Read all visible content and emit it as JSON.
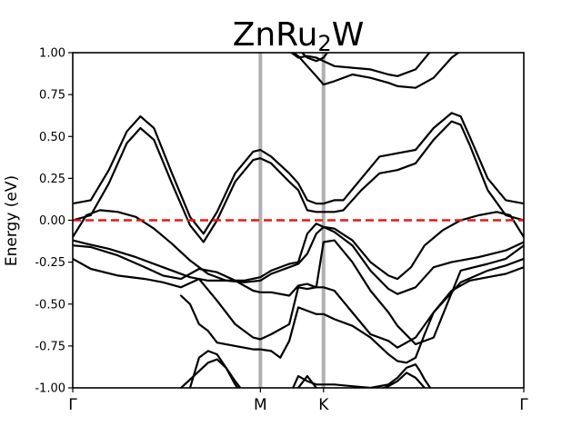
{
  "chart_data": {
    "type": "line",
    "title_main": "ZnRu",
    "title_sub": "2",
    "title_tail": "W",
    "xlabel": "",
    "ylabel": "Energy (eV)",
    "ylim": [
      -1.0,
      1.0
    ],
    "yticks": [
      "1.00",
      "0.75",
      "0.50",
      "0.25",
      "0.00",
      "-0.25",
      "-0.50",
      "-0.75",
      "-1.00"
    ],
    "ytick_values": [
      1.0,
      0.75,
      0.5,
      0.25,
      0.0,
      -0.25,
      -0.5,
      -0.75,
      -1.0
    ],
    "xlim": [
      0,
      1.0
    ],
    "kpoints": [
      {
        "label": "Γ",
        "x": 0.0
      },
      {
        "label": "M",
        "x": 0.416
      },
      {
        "label": "K",
        "x": 0.556
      },
      {
        "label": "Γ",
        "x": 1.0
      }
    ],
    "vlines": [
      0.416,
      0.556
    ],
    "fermi_level": 0.0,
    "colors": {
      "bands": "#000000",
      "fermi": "#e31a1c",
      "vline": "#b0b0b0"
    },
    "series": [
      {
        "x": [
          0.0,
          0.04,
          0.08,
          0.12,
          0.15,
          0.18,
          0.22,
          0.26,
          0.29,
          0.32,
          0.36,
          0.4,
          0.416,
          0.44,
          0.48,
          0.5,
          0.52,
          0.54,
          0.556,
          0.58,
          0.6,
          0.64,
          0.68,
          0.72,
          0.76,
          0.8,
          0.84,
          0.86,
          0.88,
          0.92,
          0.96,
          1.0
        ],
        "values": [
          0.1,
          0.12,
          0.3,
          0.53,
          0.62,
          0.55,
          0.28,
          0.02,
          -0.08,
          0.05,
          0.28,
          0.41,
          0.42,
          0.38,
          0.28,
          0.22,
          0.12,
          0.1,
          0.1,
          0.12,
          0.12,
          0.25,
          0.38,
          0.4,
          0.42,
          0.55,
          0.64,
          0.62,
          0.5,
          0.25,
          0.12,
          0.1
        ]
      },
      {
        "x": [
          0.0,
          0.04,
          0.08,
          0.12,
          0.15,
          0.18,
          0.22,
          0.26,
          0.29,
          0.32,
          0.36,
          0.4,
          0.416,
          0.44,
          0.48,
          0.5,
          0.52,
          0.54,
          0.556,
          0.58,
          0.6,
          0.64,
          0.68,
          0.72,
          0.76,
          0.8,
          0.84,
          0.86,
          0.88,
          0.92,
          0.96,
          1.0
        ],
        "values": [
          0.0,
          0.03,
          0.22,
          0.46,
          0.55,
          0.48,
          0.22,
          -0.03,
          -0.13,
          0.0,
          0.23,
          0.36,
          0.37,
          0.34,
          0.23,
          0.18,
          0.06,
          0.05,
          0.05,
          0.05,
          0.06,
          0.18,
          0.28,
          0.3,
          0.34,
          0.48,
          0.59,
          0.57,
          0.45,
          0.18,
          0.03,
          0.0
        ]
      },
      {
        "x": [
          0.0,
          0.03,
          0.06,
          0.1,
          0.14,
          0.18,
          0.22,
          0.26,
          0.3,
          0.34,
          0.38,
          0.416,
          0.44,
          0.48,
          0.5,
          0.52,
          0.54,
          0.556,
          0.58,
          0.62,
          0.66,
          0.7,
          0.72,
          0.75,
          0.78,
          0.82,
          0.86,
          0.9,
          0.94,
          0.97,
          1.0
        ],
        "values": [
          -0.1,
          0.03,
          0.06,
          0.05,
          0.02,
          -0.05,
          -0.14,
          -0.24,
          -0.32,
          -0.36,
          -0.37,
          -0.36,
          -0.32,
          -0.28,
          -0.26,
          -0.2,
          -0.08,
          -0.04,
          -0.05,
          -0.12,
          -0.25,
          -0.33,
          -0.35,
          -0.28,
          -0.15,
          -0.06,
          0.0,
          0.03,
          0.05,
          0.03,
          -0.1
        ]
      },
      {
        "x": [
          0.0,
          0.03,
          0.08,
          0.14,
          0.2,
          0.26,
          0.3,
          0.34,
          0.38,
          0.416,
          0.44,
          0.48,
          0.5,
          0.52,
          0.54,
          0.556,
          0.58,
          0.62,
          0.66,
          0.7,
          0.72,
          0.76,
          0.8,
          0.84,
          0.9,
          0.96,
          1.0
        ],
        "values": [
          -0.12,
          -0.14,
          -0.17,
          -0.22,
          -0.28,
          -0.34,
          -0.36,
          -0.36,
          -0.36,
          -0.34,
          -0.3,
          -0.26,
          -0.25,
          -0.08,
          -0.02,
          -0.04,
          -0.07,
          -0.15,
          -0.3,
          -0.41,
          -0.44,
          -0.4,
          -0.28,
          -0.25,
          -0.22,
          -0.18,
          -0.13
        ]
      },
      {
        "x": [
          0.0,
          0.04,
          0.1,
          0.16,
          0.2,
          0.24,
          0.28,
          0.32,
          0.36,
          0.4,
          0.416,
          0.44,
          0.48,
          0.5,
          0.52,
          0.54,
          0.556,
          0.58,
          0.62,
          0.66,
          0.7,
          0.72,
          0.76,
          0.8,
          0.86,
          0.92,
          0.96,
          1.0
        ],
        "values": [
          -0.15,
          -0.16,
          -0.21,
          -0.28,
          -0.33,
          -0.35,
          -0.29,
          -0.31,
          -0.36,
          -0.42,
          -0.43,
          -0.43,
          -0.45,
          -0.39,
          -0.38,
          -0.4,
          -0.13,
          -0.12,
          -0.25,
          -0.42,
          -0.55,
          -0.63,
          -0.74,
          -0.7,
          -0.3,
          -0.26,
          -0.23,
          -0.15
        ]
      },
      {
        "x": [
          0.0,
          0.04,
          0.1,
          0.16,
          0.2,
          0.24,
          0.28,
          0.32,
          0.36,
          0.4,
          0.416,
          0.44,
          0.48,
          0.5,
          0.52,
          0.54,
          0.556,
          0.58,
          0.62,
          0.66,
          0.7,
          0.72,
          0.76,
          0.8,
          0.86,
          0.92,
          0.96,
          1.0
        ],
        "values": [
          -0.23,
          -0.29,
          -0.33,
          -0.35,
          -0.37,
          -0.4,
          -0.35,
          -0.48,
          -0.62,
          -0.7,
          -0.71,
          -0.68,
          -0.62,
          -0.4,
          -0.41,
          -0.4,
          -0.4,
          -0.42,
          -0.55,
          -0.68,
          -0.72,
          -0.76,
          -0.7,
          -0.55,
          -0.37,
          -0.3,
          -0.27,
          -0.23
        ]
      },
      {
        "x": [
          0.24,
          0.26,
          0.28,
          0.3,
          0.32,
          0.36,
          0.4,
          0.416,
          0.44,
          0.46,
          0.48,
          0.5,
          0.52,
          0.54,
          0.556,
          0.58,
          0.62,
          0.66,
          0.7,
          0.72,
          0.74,
          0.76,
          0.78,
          0.8,
          0.84,
          0.88,
          0.92,
          0.96,
          1.0
        ],
        "values": [
          -0.45,
          -0.5,
          -0.62,
          -0.66,
          -0.73,
          -0.75,
          -0.77,
          -0.77,
          -0.78,
          -0.82,
          -0.72,
          -0.52,
          -0.54,
          -0.56,
          -0.56,
          -0.59,
          -0.63,
          -0.7,
          -0.8,
          -0.84,
          -0.85,
          -0.82,
          -0.68,
          -0.55,
          -0.42,
          -0.36,
          -0.34,
          -0.32,
          -0.28
        ]
      },
      {
        "x": [
          0.24,
          0.26,
          0.28,
          0.3,
          0.32,
          0.34,
          0.36,
          0.38,
          0.4
        ],
        "values": [
          -1.0,
          -0.95,
          -0.9,
          -0.85,
          -0.83,
          -0.88,
          -0.96,
          -1.03,
          -1.08
        ]
      },
      {
        "x": [
          0.24,
          0.26,
          0.28,
          0.3,
          0.32,
          0.34,
          0.36,
          0.38
        ],
        "values": [
          -1.05,
          -1.0,
          -0.82,
          -0.78,
          -0.8,
          -0.88,
          -0.98,
          -1.05
        ]
      },
      {
        "x": [
          0.48,
          0.5,
          0.52,
          0.54,
          0.556,
          0.58,
          0.62,
          0.66,
          0.7,
          0.72,
          0.74,
          0.76,
          0.77,
          0.78,
          0.8
        ],
        "values": [
          -1.05,
          -0.93,
          -0.96,
          -0.98,
          -0.98,
          -0.98,
          -0.99,
          -1.0,
          -0.98,
          -0.94,
          -0.88,
          -0.86,
          -0.9,
          -0.95,
          -1.03
        ]
      },
      {
        "x": [
          0.48,
          0.5,
          0.52,
          0.54,
          0.556,
          0.58,
          0.62,
          0.66,
          0.7,
          0.72,
          0.74,
          0.76,
          0.78,
          0.8
        ],
        "values": [
          -1.1,
          -1.0,
          -0.93,
          -1.0,
          -1.02,
          -1.04,
          -1.05,
          -1.03,
          -0.99,
          -0.96,
          -0.91,
          -0.94,
          -1.0,
          -1.05
        ]
      },
      {
        "x": [
          0.44,
          0.48,
          0.5,
          0.52,
          0.54,
          0.556,
          0.58,
          0.62,
          0.66,
          0.7,
          0.72,
          0.76,
          0.8
        ],
        "values": [
          1.05,
          1.01,
          0.97,
          0.98,
          0.97,
          0.95,
          0.92,
          0.91,
          0.9,
          0.87,
          0.86,
          0.9,
          1.03
        ]
      },
      {
        "x": [
          0.46,
          0.5,
          0.52,
          0.54,
          0.556,
          0.58,
          0.62,
          0.66,
          0.7,
          0.72,
          0.76,
          0.8,
          0.84,
          0.88
        ],
        "values": [
          1.05,
          0.98,
          0.92,
          0.86,
          0.81,
          0.83,
          0.87,
          0.85,
          0.82,
          0.8,
          0.79,
          0.85,
          0.97,
          1.05
        ]
      },
      {
        "x": [
          0.5,
          0.52,
          0.54,
          0.556,
          0.57
        ],
        "values": [
          1.02,
          0.97,
          0.95,
          0.97,
          1.02
        ]
      }
    ]
  }
}
